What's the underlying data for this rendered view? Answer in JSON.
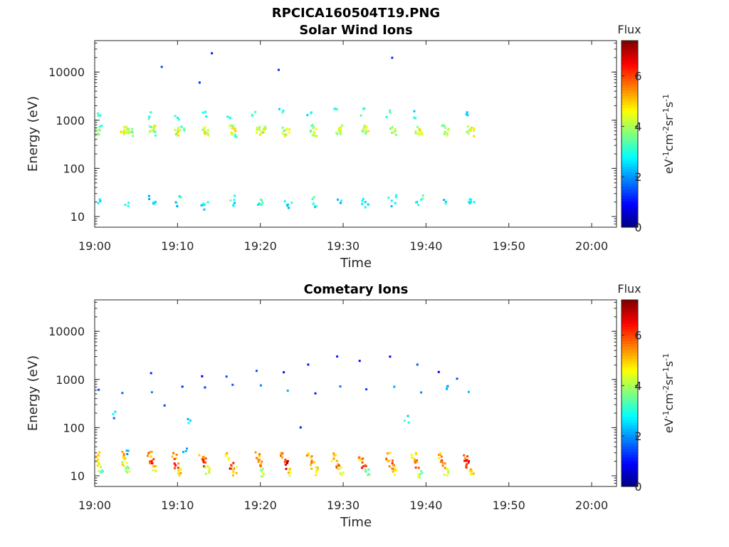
{
  "figure_title": "RPCICA160504T19.PNG",
  "chart_data": [
    {
      "type": "heatmap",
      "title": "Solar Wind Ions",
      "xlabel": "Time",
      "ylabel": "Energy (eV)",
      "yscale": "log",
      "xlim": [
        "19:00",
        "20:03"
      ],
      "ylim": [
        6,
        45000
      ],
      "x_ticks": [
        "19:00",
        "19:10",
        "19:20",
        "19:30",
        "19:40",
        "19:50",
        "20:00"
      ],
      "y_ticks": [
        "10",
        "100",
        "1000",
        "10000"
      ],
      "colorbar": {
        "title": "Flux",
        "label": "eV-1cm-2sr-1s-1",
        "ticks": [
          "0",
          "2",
          "4",
          "6"
        ],
        "range": [
          0,
          7.4
        ],
        "colormap": "jet"
      },
      "sweeps_min": [
        0.5,
        3.5,
        7.0,
        10.0,
        13.0,
        16.5,
        19.8,
        23.0,
        26.3,
        29.5,
        32.5,
        35.8,
        39.0,
        42.2,
        45.2
      ],
      "points": [
        [
          0.2,
          600,
          3.6
        ],
        [
          0.5,
          700,
          3.4
        ],
        [
          3.2,
          620,
          4.4
        ],
        [
          3.5,
          700,
          4.6
        ],
        [
          3.9,
          640,
          4.3
        ],
        [
          4.2,
          560,
          3.8
        ],
        [
          6.8,
          650,
          3.8
        ],
        [
          7.0,
          700,
          4.3
        ],
        [
          7.3,
          560,
          3.5
        ],
        [
          9.8,
          650,
          3.7
        ],
        [
          10.1,
          600,
          4.4
        ],
        [
          10.5,
          700,
          3.3
        ],
        [
          13.0,
          680,
          3.9
        ],
        [
          13.3,
          620,
          4.4
        ],
        [
          16.3,
          700,
          4.0
        ],
        [
          16.6,
          620,
          4.6
        ],
        [
          17.0,
          560,
          3.5
        ],
        [
          19.7,
          640,
          4.2
        ],
        [
          20.0,
          600,
          4.7
        ],
        [
          20.3,
          700,
          3.6
        ],
        [
          22.8,
          650,
          3.9
        ],
        [
          23.1,
          600,
          4.4
        ],
        [
          26.2,
          700,
          3.9
        ],
        [
          26.5,
          600,
          4.5
        ],
        [
          29.3,
          650,
          3.8
        ],
        [
          29.6,
          700,
          4.1
        ],
        [
          32.4,
          620,
          3.9
        ],
        [
          32.7,
          700,
          4.3
        ],
        [
          35.7,
          640,
          3.5
        ],
        [
          36.0,
          600,
          4.3
        ],
        [
          38.9,
          650,
          4.2
        ],
        [
          39.2,
          600,
          4.6
        ],
        [
          42.0,
          700,
          3.8
        ],
        [
          42.3,
          620,
          4.2
        ],
        [
          45.1,
          650,
          3.9
        ],
        [
          45.4,
          600,
          4.4
        ],
        [
          0.4,
          1200,
          3.0
        ],
        [
          6.4,
          1300,
          2.8
        ],
        [
          9.8,
          1200,
          2.7
        ],
        [
          13.2,
          1500,
          2.9
        ],
        [
          16.0,
          1400,
          2.8
        ],
        [
          19.0,
          1400,
          2.9
        ],
        [
          22.4,
          1500,
          2.8
        ],
        [
          25.8,
          1600,
          2.9
        ],
        [
          29.0,
          1700,
          2.9
        ],
        [
          32.2,
          1600,
          2.8
        ],
        [
          35.4,
          1500,
          2.9
        ],
        [
          38.6,
          1400,
          2.8
        ],
        [
          44.9,
          1400,
          2.8
        ],
        [
          0.5,
          22,
          2.6
        ],
        [
          3.7,
          20,
          2.8
        ],
        [
          6.7,
          24,
          2.7
        ],
        [
          7.1,
          18,
          3.0
        ],
        [
          9.7,
          20,
          2.6
        ],
        [
          10.2,
          24,
          2.9
        ],
        [
          13.0,
          22,
          2.7
        ],
        [
          13.4,
          18,
          2.8
        ],
        [
          16.5,
          20,
          3.1
        ],
        [
          16.9,
          24,
          2.8
        ],
        [
          19.8,
          19,
          2.7
        ],
        [
          20.2,
          22,
          3.0
        ],
        [
          23.0,
          21,
          2.9
        ],
        [
          23.4,
          18,
          2.6
        ],
        [
          26.2,
          22,
          3.0
        ],
        [
          26.6,
          18,
          2.8
        ],
        [
          29.5,
          21,
          2.7
        ],
        [
          32.4,
          22,
          3.0
        ],
        [
          32.8,
          18,
          2.8
        ],
        [
          35.5,
          21,
          2.8
        ],
        [
          36.0,
          24,
          2.7
        ],
        [
          38.9,
          20,
          2.6
        ],
        [
          39.4,
          24,
          3.0
        ],
        [
          42.1,
          22,
          2.8
        ],
        [
          45.0,
          20,
          3.1
        ],
        [
          45.4,
          24,
          2.8
        ],
        [
          14.0,
          24000,
          1.0
        ],
        [
          35.8,
          19000,
          1.1
        ],
        [
          12.8,
          6000,
          1.0
        ],
        [
          8.0,
          14000,
          1.0
        ],
        [
          22.0,
          12000,
          1.0
        ]
      ]
    },
    {
      "type": "heatmap",
      "title": "Cometary Ions",
      "xlabel": "Time",
      "ylabel": "Energy (eV)",
      "yscale": "log",
      "xlim": [
        "19:00",
        "20:03"
      ],
      "ylim": [
        6,
        45000
      ],
      "x_ticks": [
        "19:00",
        "19:10",
        "19:20",
        "19:30",
        "19:40",
        "19:50",
        "20:00"
      ],
      "y_ticks": [
        "10",
        "100",
        "1000",
        "10000"
      ],
      "colorbar": {
        "title": "Flux",
        "label": "eV-1cm-2sr-1s-1",
        "ticks": [
          "0",
          "2",
          "4",
          "6"
        ],
        "range": [
          0,
          7.4
        ],
        "colormap": "jet"
      },
      "sweeps_min": [
        0.5,
        3.5,
        7.0,
        10.0,
        13.0,
        16.5,
        19.8,
        23.0,
        26.3,
        29.5,
        32.5,
        35.8,
        39.0,
        42.2,
        45.2
      ],
      "points": [
        [
          0.2,
          28,
          5.0
        ],
        [
          0.4,
          18,
          4.6
        ],
        [
          0.6,
          14,
          3.8
        ],
        [
          3.2,
          28,
          5.2
        ],
        [
          3.5,
          20,
          4.7
        ],
        [
          3.8,
          14,
          4.0
        ],
        [
          6.5,
          28,
          5.3
        ],
        [
          6.8,
          20,
          5.9
        ],
        [
          7.1,
          14,
          4.8
        ],
        [
          9.5,
          26,
          5.5
        ],
        [
          9.8,
          18,
          6.0
        ],
        [
          10.2,
          13,
          4.9
        ],
        [
          12.8,
          28,
          5.3
        ],
        [
          13.1,
          20,
          6.2
        ],
        [
          13.5,
          14,
          4.5
        ],
        [
          16.0,
          26,
          5.2
        ],
        [
          16.4,
          18,
          6.3
        ],
        [
          16.8,
          13,
          4.8
        ],
        [
          19.5,
          27,
          5.0
        ],
        [
          19.9,
          19,
          5.7
        ],
        [
          20.2,
          12,
          4.0
        ],
        [
          22.6,
          26,
          5.6
        ],
        [
          23.0,
          18,
          6.6
        ],
        [
          23.3,
          13,
          4.7
        ],
        [
          25.8,
          26,
          5.2
        ],
        [
          26.2,
          18,
          5.4
        ],
        [
          26.6,
          13,
          4.6
        ],
        [
          28.8,
          26,
          5.0
        ],
        [
          29.2,
          18,
          5.5
        ],
        [
          29.6,
          13,
          4.5
        ],
        [
          32.0,
          26,
          5.2
        ],
        [
          32.4,
          18,
          5.9
        ],
        [
          32.8,
          12,
          3.8
        ],
        [
          35.3,
          26,
          5.4
        ],
        [
          35.7,
          18,
          5.8
        ],
        [
          36.0,
          13,
          4.8
        ],
        [
          38.4,
          26,
          5.0
        ],
        [
          38.8,
          18,
          5.7
        ],
        [
          39.2,
          12,
          4.0
        ],
        [
          41.5,
          26,
          5.1
        ],
        [
          41.9,
          18,
          5.8
        ],
        [
          42.3,
          13,
          4.5
        ],
        [
          44.6,
          26,
          5.8
        ],
        [
          45.0,
          18,
          6.3
        ],
        [
          45.4,
          13,
          5.0
        ],
        [
          0.3,
          620,
          1.6
        ],
        [
          3.5,
          600,
          1.7
        ],
        [
          6.9,
          620,
          1.6
        ],
        [
          10.2,
          620,
          1.6
        ],
        [
          13.3,
          650,
          1.7
        ],
        [
          16.6,
          680,
          1.5
        ],
        [
          19.8,
          650,
          1.6
        ],
        [
          23.1,
          680,
          1.7
        ],
        [
          26.3,
          660,
          1.6
        ],
        [
          29.5,
          650,
          1.7
        ],
        [
          32.7,
          650,
          1.6
        ],
        [
          36.0,
          620,
          1.6
        ],
        [
          39.1,
          640,
          1.7
        ],
        [
          42.4,
          660,
          2.1
        ],
        [
          45.3,
          680,
          2.0
        ],
        [
          6.5,
          1400,
          1.2
        ],
        [
          12.8,
          1400,
          1.1
        ],
        [
          16.0,
          1300,
          1.1
        ],
        [
          19.3,
          1500,
          1.2
        ],
        [
          22.5,
          1500,
          1.1
        ],
        [
          25.6,
          2400,
          1.1
        ],
        [
          28.9,
          2800,
          1.2
        ],
        [
          32.1,
          2800,
          1.1
        ],
        [
          35.3,
          2700,
          1.2
        ],
        [
          38.6,
          1800,
          1.2
        ],
        [
          41.7,
          1500,
          1.1
        ],
        [
          43.4,
          1300,
          1.2
        ],
        [
          2.2,
          200,
          2.2
        ],
        [
          11.2,
          160,
          2.5
        ],
        [
          8.2,
          300,
          1.6
        ],
        [
          3.8,
          35,
          2.4
        ],
        [
          10.8,
          35,
          2.6
        ],
        [
          37.5,
          150,
          2.7
        ],
        [
          24.5,
          100,
          1.4
        ]
      ]
    }
  ]
}
